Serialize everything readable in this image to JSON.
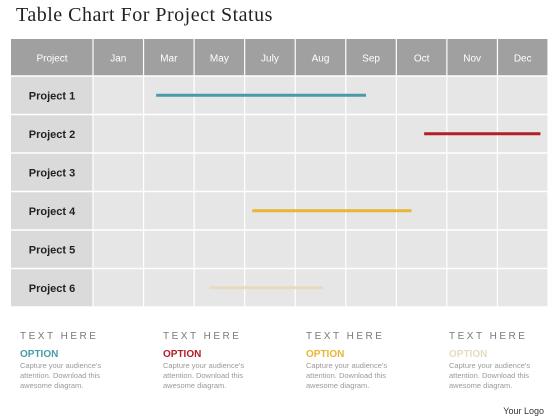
{
  "title": "Table Chart For Project Status",
  "chart_data": {
    "type": "table",
    "header_label": "Project",
    "months": [
      "Jan",
      "Mar",
      "May",
      "July",
      "Aug",
      "Sep",
      "Oct",
      "Nov",
      "Dec"
    ],
    "projects": [
      {
        "label": "Project 1",
        "start": 1.25,
        "end": 5.4,
        "color": "#4a9aaa"
      },
      {
        "label": "Project 2",
        "start": 6.55,
        "end": 8.85,
        "color": "#b02026"
      },
      {
        "label": "Project 3",
        "start": null,
        "end": null,
        "color": null
      },
      {
        "label": "Project 4",
        "start": 3.15,
        "end": 6.3,
        "color": "#e8b634"
      },
      {
        "label": "Project 5",
        "start": null,
        "end": null,
        "color": null
      },
      {
        "label": "Project 6",
        "start": 2.3,
        "end": 4.55,
        "color": "#e5dcbf"
      }
    ]
  },
  "options": [
    {
      "heading": "TEXT HERE",
      "label": "OPTION",
      "color": "#4a9aaa",
      "text": "Capture your audience's attention. Download this awesome diagram."
    },
    {
      "heading": "TEXT HERE",
      "label": "OPTION",
      "color": "#b02026",
      "text": "Capture your audience's attention. Download this awesome diagram."
    },
    {
      "heading": "TEXT HERE",
      "label": "OPTION",
      "color": "#e8b634",
      "text": "Capture your audience's attention. Download this awesome diagram."
    },
    {
      "heading": "TEXT HERE",
      "label": "OPTION",
      "color": "#e5dcbf",
      "text": "Capture your audience's attention. Download this awesome diagram."
    }
  ],
  "logo": "Your Logo",
  "colors": {
    "header_bg": "#a0a0a0",
    "row_bg": "#e6e6e6",
    "label_bg": "#dadada",
    "grid": "#ffffff"
  }
}
